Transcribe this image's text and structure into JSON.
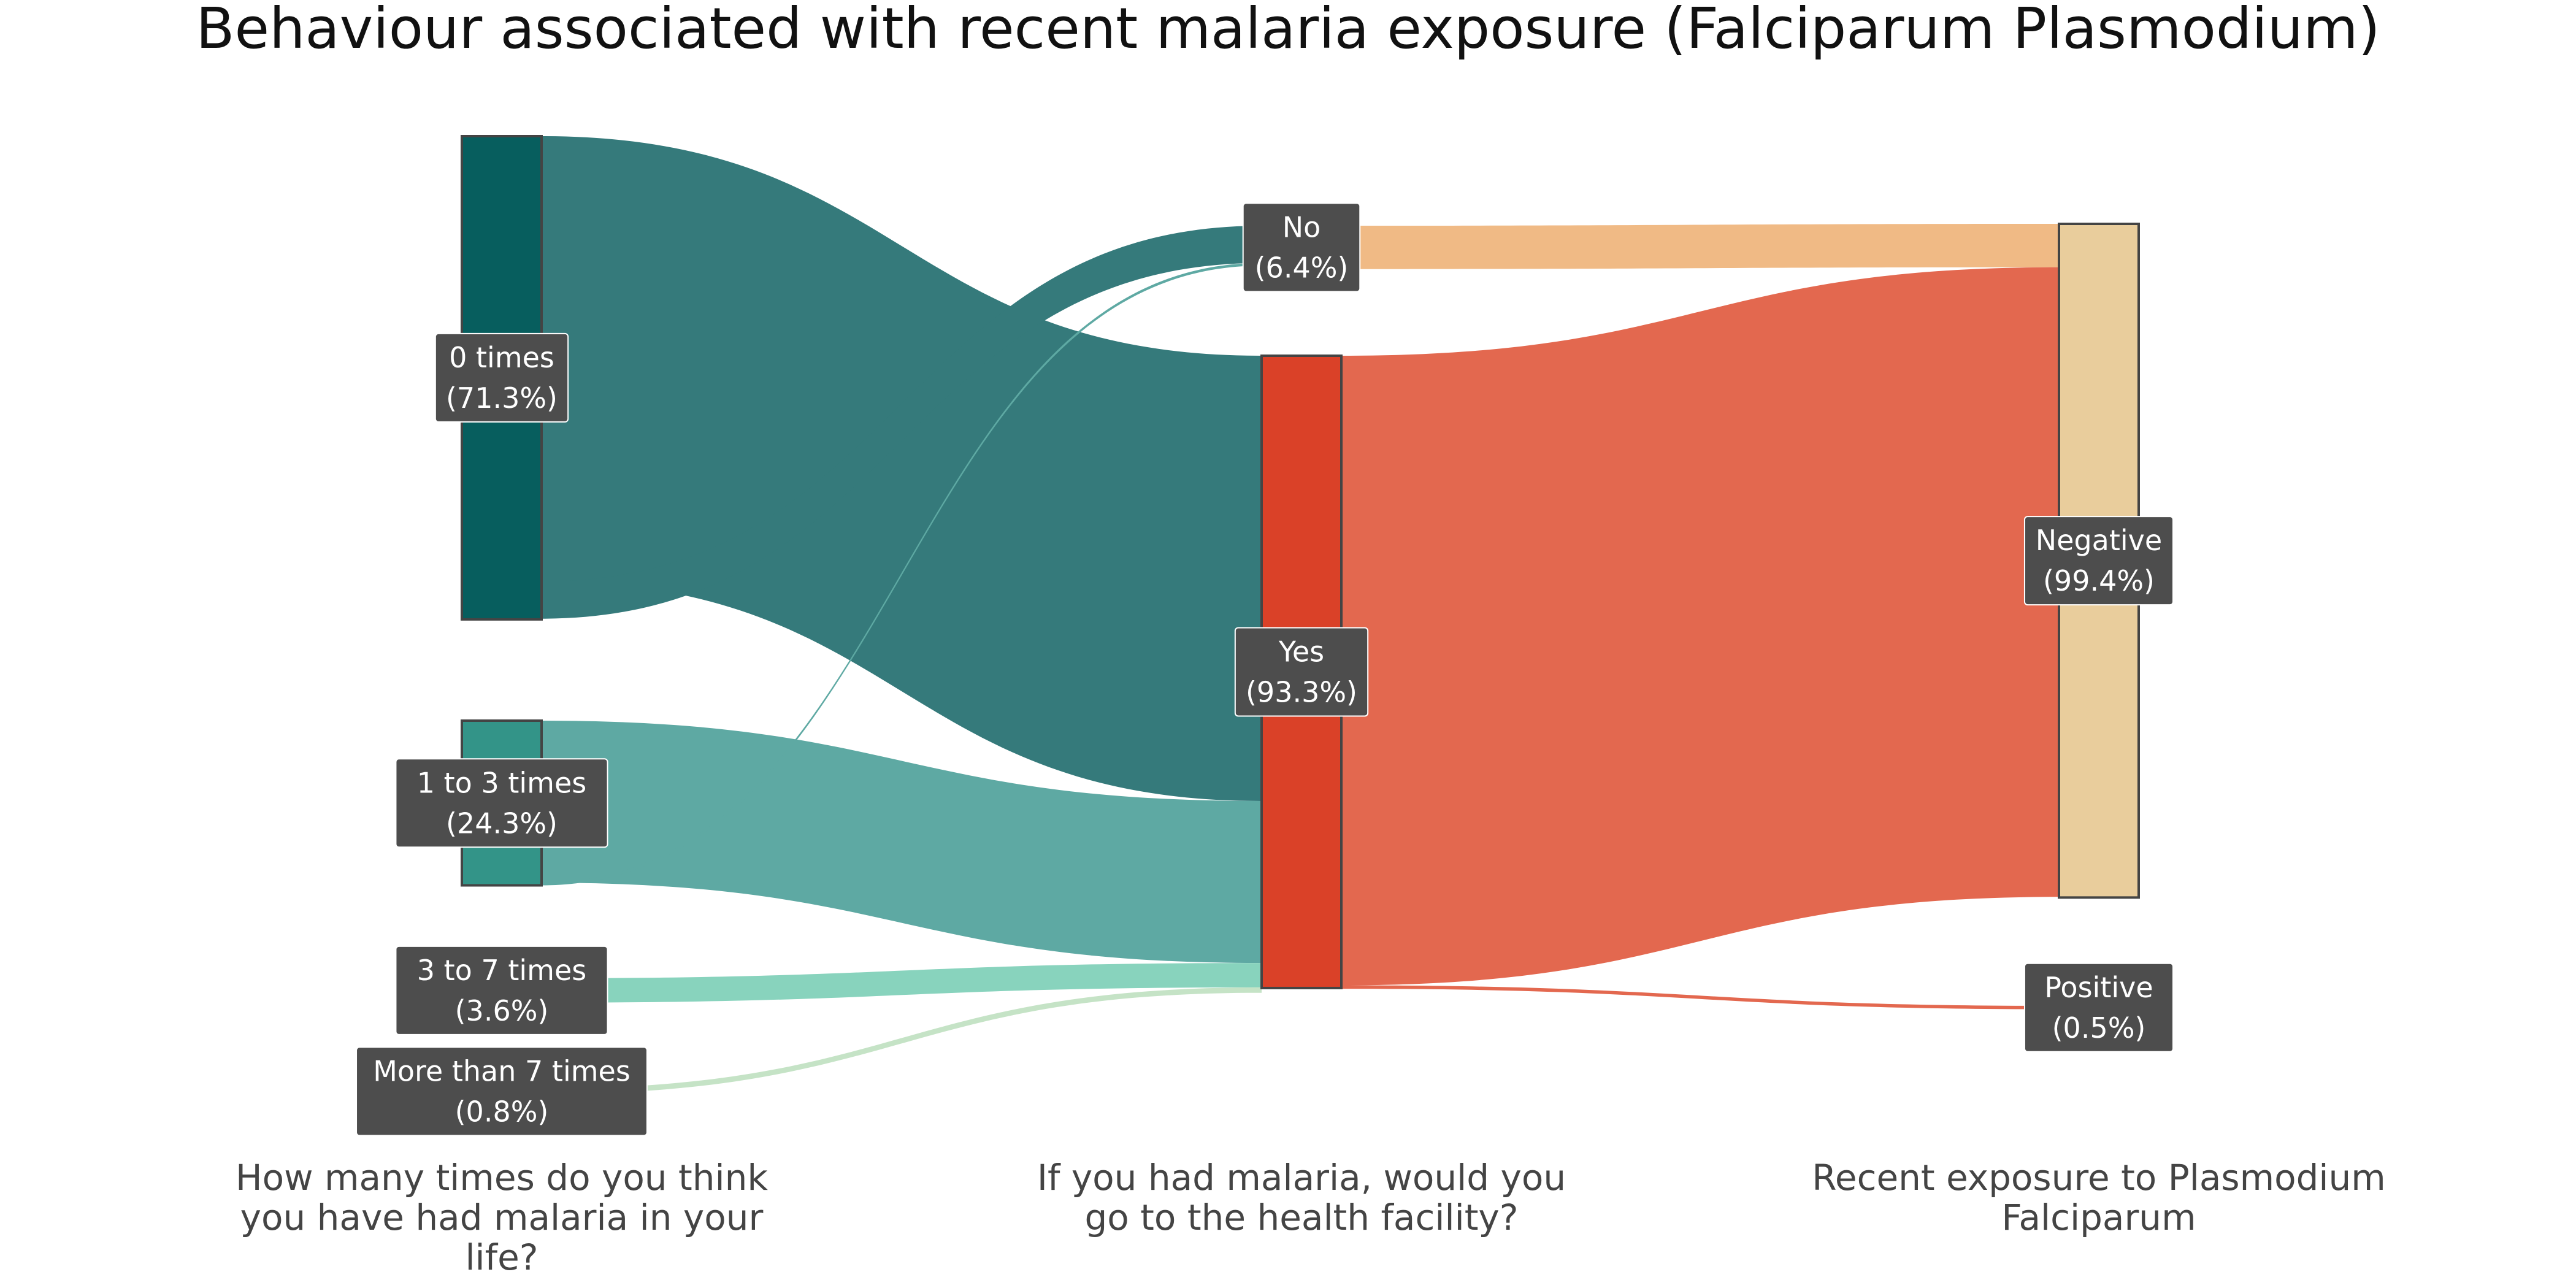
{
  "title": "Behaviour associated with recent malaria exposure (Falciparum Plasmodium)",
  "columns": [
    {
      "id": "col-times",
      "label_lines": [
        "How many times do you think",
        "you have had malaria in your",
        "life?"
      ]
    },
    {
      "id": "col-facility",
      "label_lines": [
        "If you had malaria, would you",
        "go to the health facility?"
      ]
    },
    {
      "id": "col-exposure",
      "label_lines": [
        "Recent exposure to Plasmodium",
        "Falciparum"
      ]
    }
  ],
  "colors": {
    "node_0_times": "#075e5e",
    "node_1_3_times": "#339488",
    "node_3_7_times": "#88d3bd",
    "node_more_7": "#c5e3c6",
    "node_yes": "#da4128",
    "node_no": "#f0ba85",
    "node_negative": "#e9cd9c",
    "link_0_times": "#357a7b",
    "link_1_3_times": "#5ea9a3",
    "link_3_7_times": "#88d3bd",
    "link_more_7": "#c5e3c6",
    "link_yes": "#e3684f",
    "link_no": "#f0ba85"
  },
  "chart_data": {
    "type": "sankey",
    "nodes": [
      {
        "id": "t0",
        "column": 0,
        "name": "0 times",
        "pct": "(71.3%)",
        "value": 71.3
      },
      {
        "id": "t1",
        "column": 0,
        "name": "1 to 3 times",
        "pct": "(24.3%)",
        "value": 24.3
      },
      {
        "id": "t3",
        "column": 0,
        "name": "3 to 7 times",
        "pct": "(3.6%)",
        "value": 3.6
      },
      {
        "id": "t7",
        "column": 0,
        "name": "More than 7 times",
        "pct": "(0.8%)",
        "value": 0.8
      },
      {
        "id": "no",
        "column": 1,
        "name": "No",
        "pct": "(6.4%)",
        "value": 6.4
      },
      {
        "id": "yes",
        "column": 1,
        "name": "Yes",
        "pct": "(93.3%)",
        "value": 93.3
      },
      {
        "id": "neg",
        "column": 2,
        "name": "Negative",
        "pct": "(99.4%)",
        "value": 99.4
      },
      {
        "id": "pos",
        "column": 2,
        "name": "Positive",
        "pct": "(0.5%)",
        "value": 0.5
      }
    ],
    "links": [
      {
        "source": "t0",
        "target": "yes",
        "value": 65.7
      },
      {
        "source": "t0",
        "target": "no",
        "value": 5.5
      },
      {
        "source": "t1",
        "target": "yes",
        "value": 23.9
      },
      {
        "source": "t1",
        "target": "no",
        "value": 0.4
      },
      {
        "source": "t3",
        "target": "yes",
        "value": 3.6
      },
      {
        "source": "t7",
        "target": "yes",
        "value": 0.8
      },
      {
        "source": "no",
        "target": "neg",
        "value": 6.4
      },
      {
        "source": "yes",
        "target": "neg",
        "value": 92.9
      },
      {
        "source": "yes",
        "target": "pos",
        "value": 0.5
      }
    ]
  }
}
